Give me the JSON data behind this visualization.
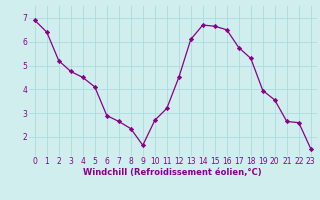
{
  "x": [
    0,
    1,
    2,
    3,
    4,
    5,
    6,
    7,
    8,
    9,
    10,
    11,
    12,
    13,
    14,
    15,
    16,
    17,
    18,
    19,
    20,
    21,
    22,
    23
  ],
  "y": [
    6.9,
    6.4,
    5.2,
    4.75,
    4.5,
    4.1,
    2.9,
    2.65,
    2.35,
    1.65,
    2.7,
    3.2,
    4.5,
    6.1,
    6.7,
    6.65,
    6.5,
    5.75,
    5.3,
    3.95,
    3.55,
    2.65,
    2.6,
    1.5
  ],
  "line_color": "#880088",
  "marker": "D",
  "marker_size": 2.2,
  "bg_color": "#d0eeee",
  "grid_color": "#aadddd",
  "xlabel": "Windchill (Refroidissement éolien,°C)",
  "xlabel_color": "#880088",
  "tick_color": "#880088",
  "xlim": [
    -0.5,
    23.5
  ],
  "ylim": [
    1.2,
    7.5
  ],
  "yticks": [
    2,
    3,
    4,
    5,
    6,
    7
  ],
  "xticks": [
    0,
    1,
    2,
    3,
    4,
    5,
    6,
    7,
    8,
    9,
    10,
    11,
    12,
    13,
    14,
    15,
    16,
    17,
    18,
    19,
    20,
    21,
    22,
    23
  ],
  "tick_fontsize": 5.5,
  "xlabel_fontsize": 6.0,
  "linewidth": 0.9
}
